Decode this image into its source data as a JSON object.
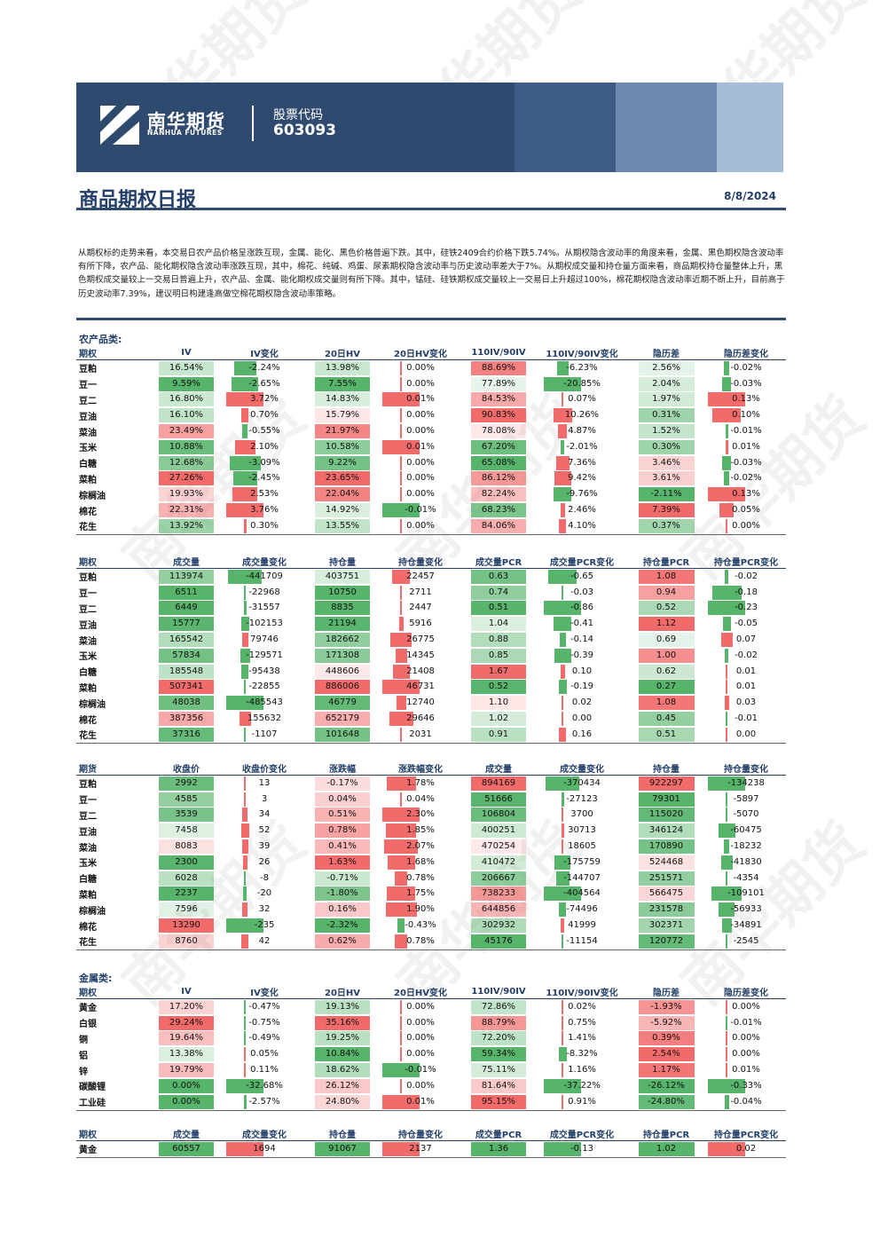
{
  "header": {
    "company_cn": "南华期货",
    "company_en": "NANHUA FUTURES",
    "stock_code_label": "股票代码",
    "stock_code": "603093"
  },
  "report": {
    "title": "商品期权日报",
    "date": "8/8/2024"
  },
  "summary": "从期权标的走势来看，本交易日农产品价格呈涨跌互现，金属、能化、黑色价格普遍下跌。其中，硅铁2409合约价格下跌5.74%。从期权隐含波动率的角度来看，金属、黑色期权隐含波动率有所下降，农产品、能化期权隐含波动率涨跌互现，其中，棉花、纯碱、鸡蛋、尿素期权隐含波动率与历史波动率差大于7%。从期权成交量和持仓量方面来看，商品期权持仓量整体上升，黑色期权成交量较上一交易日普遍上升，农产品、金属、能化期权成交量则有所下降。其中，锰硅、硅铁期权成交量较上一交易日上升超过100%，棉花期权隐含波动率近期不断上升，目前高于历史波动率7.39%，建议明日构建逢高做空棉花期权隐含波动率策略。",
  "colors": {
    "navy": "#2f4a6f",
    "title_blue": "#24406a",
    "pos_strong": "#f26b6b",
    "pos_light": "#fbd3d3",
    "neg_strong": "#57b46b",
    "neg_light": "#c7e7cc"
  },
  "watermark": "南华期货",
  "agri": {
    "title": "农产品类:",
    "iv_table": {
      "headers": [
        "期权",
        "IV",
        "IV变化",
        "20日HV",
        "20日HV变化",
        "110IV/90IV",
        "110IV/90IV变化",
        "隐历差",
        "隐历差变化"
      ],
      "rows": [
        [
          "豆粕",
          "16.54%",
          "-2.24%",
          "13.98%",
          "0.00%",
          "88.69%",
          "-6.23%",
          "2.56%",
          "-0.02%"
        ],
        [
          "豆一",
          "9.59%",
          "-2.65%",
          "7.55%",
          "0.00%",
          "77.89%",
          "-20.85%",
          "2.04%",
          "-0.03%"
        ],
        [
          "豆二",
          "16.80%",
          "3.72%",
          "14.83%",
          "0.01%",
          "84.53%",
          "0.07%",
          "1.97%",
          "0.13%"
        ],
        [
          "豆油",
          "16.10%",
          "0.70%",
          "15.79%",
          "0.00%",
          "90.83%",
          "10.26%",
          "0.31%",
          "0.10%"
        ],
        [
          "菜油",
          "23.49%",
          "-0.55%",
          "21.97%",
          "0.00%",
          "78.08%",
          "4.87%",
          "1.52%",
          "-0.01%"
        ],
        [
          "玉米",
          "10.88%",
          "2.10%",
          "10.58%",
          "0.01%",
          "67.20%",
          "-2.01%",
          "0.30%",
          "0.01%"
        ],
        [
          "白糖",
          "12.68%",
          "-3.09%",
          "9.22%",
          "0.00%",
          "65.08%",
          "7.36%",
          "3.46%",
          "-0.03%"
        ],
        [
          "菜粕",
          "27.26%",
          "-2.45%",
          "23.65%",
          "0.00%",
          "86.12%",
          "9.42%",
          "3.61%",
          "-0.02%"
        ],
        [
          "棕榈油",
          "19.93%",
          "2.53%",
          "22.04%",
          "0.00%",
          "82.24%",
          "-9.76%",
          "-2.11%",
          "0.13%"
        ],
        [
          "棉花",
          "22.31%",
          "3.76%",
          "14.92%",
          "-0.01%",
          "68.23%",
          "2.46%",
          "7.39%",
          "0.05%"
        ],
        [
          "花生",
          "13.92%",
          "0.30%",
          "13.55%",
          "0.00%",
          "84.06%",
          "4.10%",
          "0.37%",
          "0.00%"
        ]
      ]
    },
    "vol_table": {
      "headers": [
        "期权",
        "成交量",
        "成交量变化",
        "持仓量",
        "持仓量变化",
        "成交量PCR",
        "成交量PCR变化",
        "持仓量PCR",
        "持仓量PCR变化"
      ],
      "rows": [
        [
          "豆粕",
          "113974",
          "-441709",
          "403751",
          "22457",
          "0.63",
          "-0.65",
          "1.08",
          "-0.02"
        ],
        [
          "豆一",
          "6511",
          "-22968",
          "10750",
          "2711",
          "0.74",
          "-0.03",
          "0.94",
          "-0.18"
        ],
        [
          "豆二",
          "6449",
          "-31557",
          "8835",
          "2447",
          "0.51",
          "-0.86",
          "0.52",
          "-0.23"
        ],
        [
          "豆油",
          "15777",
          "-102153",
          "21194",
          "5916",
          "1.04",
          "-0.41",
          "1.12",
          "-0.05"
        ],
        [
          "菜油",
          "165542",
          "79746",
          "182662",
          "26775",
          "0.88",
          "-0.14",
          "0.69",
          "0.07"
        ],
        [
          "玉米",
          "57834",
          "-129571",
          "171308",
          "14345",
          "0.85",
          "-0.39",
          "1.00",
          "-0.02"
        ],
        [
          "白糖",
          "185548",
          "-95438",
          "448606",
          "21408",
          "1.67",
          "0.10",
          "0.62",
          "0.01"
        ],
        [
          "菜粕",
          "507341",
          "-22855",
          "886006",
          "46731",
          "0.52",
          "-0.19",
          "0.27",
          "0.01"
        ],
        [
          "棕榈油",
          "48038",
          "-485543",
          "46779",
          "12740",
          "1.10",
          "0.02",
          "1.08",
          "0.03"
        ],
        [
          "棉花",
          "387356",
          "155632",
          "652179",
          "29646",
          "1.02",
          "0.00",
          "0.45",
          "-0.01"
        ],
        [
          "花生",
          "37316",
          "-1107",
          "101648",
          "2031",
          "0.91",
          "0.16",
          "0.51",
          "0.00"
        ]
      ]
    },
    "fut_table": {
      "headers": [
        "期货",
        "收盘价",
        "收盘价变化",
        "涨跌幅",
        "涨跌幅变化",
        "成交量",
        "成交量变化",
        "持仓量",
        "持仓量变化"
      ],
      "rows": [
        [
          "豆粕",
          "2992",
          "13",
          "-0.17%",
          "1.78%",
          "894169",
          "-370434",
          "922297",
          "-134238"
        ],
        [
          "豆一",
          "4585",
          "3",
          "0.04%",
          "0.04%",
          "51666",
          "-27123",
          "79301",
          "-5897"
        ],
        [
          "豆二",
          "3539",
          "34",
          "0.51%",
          "2.30%",
          "106804",
          "3700",
          "115020",
          "-5070"
        ],
        [
          "豆油",
          "7458",
          "52",
          "0.78%",
          "1.85%",
          "400251",
          "30713",
          "346124",
          "-60475"
        ],
        [
          "菜油",
          "8083",
          "39",
          "0.41%",
          "2.07%",
          "470254",
          "18605",
          "170890",
          "-18232"
        ],
        [
          "玉米",
          "2300",
          "26",
          "1.63%",
          "1.68%",
          "410472",
          "-175759",
          "524468",
          "-41830"
        ],
        [
          "白糖",
          "6028",
          "-8",
          "-0.71%",
          "0.78%",
          "206667",
          "-144707",
          "251571",
          "-4354"
        ],
        [
          "菜粕",
          "2237",
          "-20",
          "-1.80%",
          "1.75%",
          "738233",
          "-404564",
          "566475",
          "-109101"
        ],
        [
          "棕榈油",
          "7596",
          "32",
          "0.16%",
          "1.90%",
          "644856",
          "-74496",
          "231578",
          "-56933"
        ],
        [
          "棉花",
          "13290",
          "-235",
          "-2.32%",
          "-0.43%",
          "302932",
          "41999",
          "302371",
          "-34891"
        ],
        [
          "花生",
          "8760",
          "42",
          "0.62%",
          "0.78%",
          "45176",
          "-11154",
          "120772",
          "-2545"
        ]
      ]
    }
  },
  "metal": {
    "title": "金属类:",
    "iv_table": {
      "headers": [
        "期权",
        "IV",
        "IV变化",
        "20日HV",
        "20日HV变化",
        "110IV/90IV",
        "110IV/90IV变化",
        "隐历差",
        "隐历差变化"
      ],
      "rows": [
        [
          "黄金",
          "17.20%",
          "-0.47%",
          "19.13%",
          "0.00%",
          "72.86%",
          "0.02%",
          "-1.93%",
          "0.00%"
        ],
        [
          "白银",
          "29.24%",
          "-0.75%",
          "35.16%",
          "0.00%",
          "88.79%",
          "0.75%",
          "-5.92%",
          "-0.01%"
        ],
        [
          "铜",
          "19.64%",
          "-0.49%",
          "19.25%",
          "0.00%",
          "72.20%",
          "1.41%",
          "0.39%",
          "0.00%"
        ],
        [
          "铝",
          "13.38%",
          "0.05%",
          "10.84%",
          "0.00%",
          "59.34%",
          "-8.32%",
          "2.54%",
          "0.00%"
        ],
        [
          "锌",
          "19.79%",
          "0.11%",
          "18.62%",
          "-0.01%",
          "75.11%",
          "1.16%",
          "1.17%",
          "0.01%"
        ],
        [
          "碳酸锂",
          "0.00%",
          "-32.68%",
          "26.12%",
          "0.00%",
          "81.64%",
          "-37.22%",
          "-26.12%",
          "-0.33%"
        ],
        [
          "工业硅",
          "0.00%",
          "-2.57%",
          "24.80%",
          "0.01%",
          "95.15%",
          "0.91%",
          "-24.80%",
          "-0.04%"
        ]
      ]
    },
    "vol_table": {
      "headers": [
        "期权",
        "成交量",
        "成交量变化",
        "持仓量",
        "持仓量变化",
        "成交量PCR",
        "成交量PCR变化",
        "持仓量PCR",
        "持仓量PCR变化"
      ],
      "rows": [
        [
          "黄金",
          "60557",
          "1694",
          "91067",
          "2137",
          "1.36",
          "-0.13",
          "1.02",
          "0.02"
        ]
      ]
    }
  }
}
